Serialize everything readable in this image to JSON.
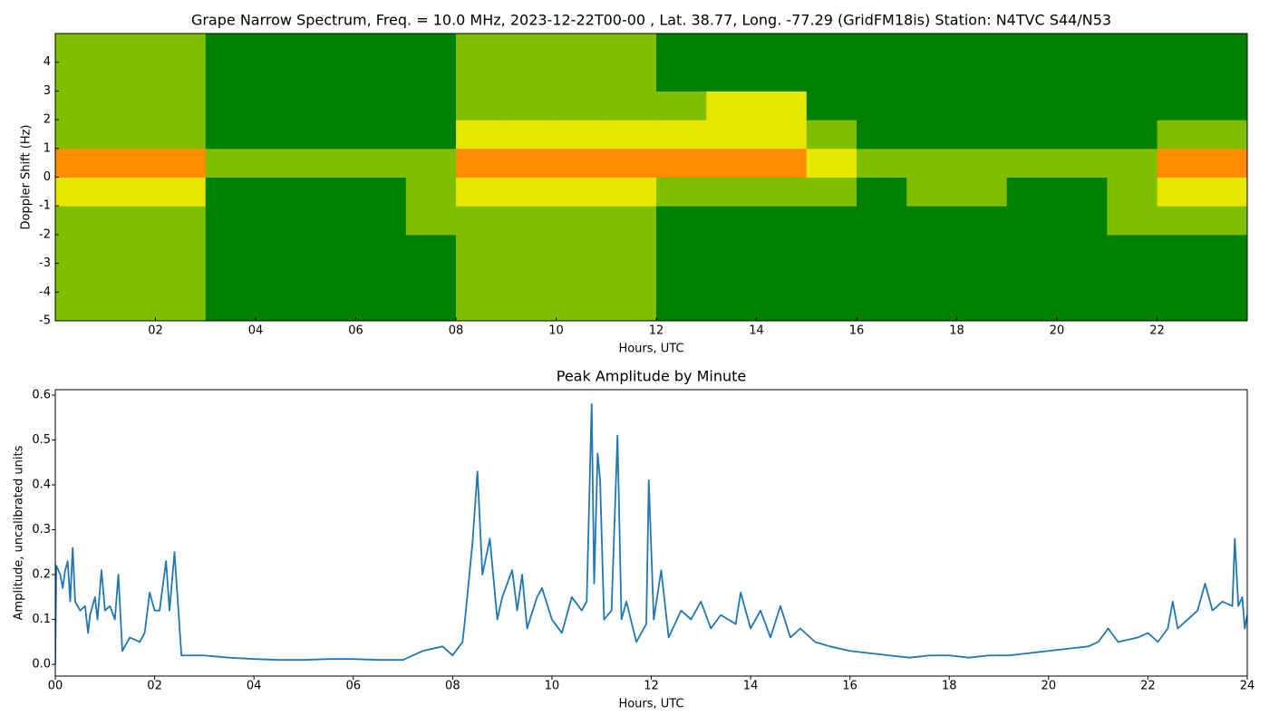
{
  "chart_data": [
    {
      "type": "heatmap",
      "title": "Grape Narrow Spectrum, Freq. = 10.0 MHz, 2023-12-22T00-00 , Lat.  38.77, Long. -77.29 (GridFM18is) Station: N4TVC S44/N53",
      "x_label": "Hours, UTC",
      "y_label": "Doppler Shift (Hz)",
      "x": [
        0,
        1,
        2,
        3,
        4,
        5,
        6,
        7,
        8,
        9,
        10,
        11,
        12,
        13,
        14,
        15,
        16,
        17,
        18,
        19,
        20,
        21,
        22,
        23
      ],
      "y": [
        -5,
        -4,
        -3,
        -2,
        -1,
        0,
        1,
        2,
        3,
        4
      ],
      "z": [
        [
          1,
          1,
          1,
          0,
          0,
          0,
          0,
          0,
          1,
          1,
          1,
          1,
          0,
          0,
          0,
          0,
          0,
          0,
          0,
          0,
          0,
          0,
          0,
          0
        ],
        [
          1,
          1,
          1,
          0,
          0,
          0,
          0,
          0,
          1,
          1,
          1,
          1,
          0,
          0,
          0,
          0,
          0,
          0,
          0,
          0,
          0,
          0,
          0,
          0
        ],
        [
          1,
          1,
          1,
          0,
          0,
          0,
          0,
          0,
          1,
          1,
          1,
          1,
          0,
          0,
          0,
          0,
          0,
          0,
          0,
          0,
          0,
          0,
          0,
          0
        ],
        [
          1,
          1,
          1,
          0,
          0,
          0,
          0,
          1,
          1,
          1,
          1,
          1,
          0,
          0,
          0,
          0,
          0,
          0,
          0,
          0,
          0,
          1,
          1,
          1
        ],
        [
          2,
          2,
          2,
          0,
          0,
          0,
          0,
          1,
          2,
          2,
          2,
          2,
          1,
          1,
          1,
          1,
          0,
          1,
          1,
          0,
          0,
          1,
          2,
          2
        ],
        [
          3,
          3,
          3,
          1,
          1,
          1,
          1,
          1,
          3,
          3,
          3,
          3,
          3,
          3,
          3,
          2,
          1,
          1,
          1,
          1,
          1,
          1,
          3,
          3
        ],
        [
          1,
          1,
          1,
          0,
          0,
          0,
          0,
          0,
          2,
          2,
          2,
          2,
          2,
          2,
          2,
          1,
          0,
          0,
          0,
          0,
          0,
          0,
          1,
          1
        ],
        [
          1,
          1,
          1,
          0,
          0,
          0,
          0,
          0,
          1,
          1,
          1,
          1,
          1,
          2,
          2,
          0,
          0,
          0,
          0,
          0,
          0,
          0,
          0,
          0
        ],
        [
          1,
          1,
          1,
          0,
          0,
          0,
          0,
          0,
          1,
          1,
          1,
          1,
          0,
          0,
          0,
          0,
          0,
          0,
          0,
          0,
          0,
          0,
          0,
          0
        ],
        [
          1,
          1,
          1,
          0,
          0,
          0,
          0,
          0,
          1,
          1,
          1,
          1,
          0,
          0,
          0,
          0,
          0,
          0,
          0,
          0,
          0,
          0,
          0,
          0
        ]
      ],
      "colors": [
        "#008000",
        "#7fbf00",
        "#e6e600",
        "#ff8c00"
      ],
      "xlim": [
        0,
        23.8
      ],
      "ylim": [
        -5,
        5
      ],
      "xticks": [
        {
          "value": 2,
          "label": "02"
        },
        {
          "value": 4,
          "label": "04"
        },
        {
          "value": 6,
          "label": "06"
        },
        {
          "value": 8,
          "label": "08"
        },
        10,
        12,
        14,
        16,
        18,
        20,
        22
      ],
      "yticks": [
        -5,
        -4,
        -3,
        -2,
        -1,
        0,
        1,
        2,
        3,
        4
      ]
    },
    {
      "type": "line",
      "title": "Peak Amplitude by Minute",
      "x_label": "Hours, UTC",
      "y_label": "Amplitude, uncalibrated units",
      "color": "#1f77b4",
      "x": [
        0.0,
        0.02,
        0.1,
        0.15,
        0.2,
        0.25,
        0.3,
        0.35,
        0.4,
        0.5,
        0.6,
        0.66,
        0.7,
        0.8,
        0.85,
        0.93,
        1.0,
        1.1,
        1.2,
        1.27,
        1.35,
        1.5,
        1.7,
        1.8,
        1.9,
        2.0,
        2.1,
        2.23,
        2.3,
        2.4,
        2.54,
        3.0,
        3.5,
        4.0,
        4.5,
        5.0,
        5.5,
        6.0,
        6.5,
        7.0,
        7.4,
        7.8,
        8.0,
        8.2,
        8.25,
        8.4,
        8.5,
        8.6,
        8.75,
        8.9,
        9.0,
        9.2,
        9.3,
        9.4,
        9.5,
        9.7,
        9.8,
        10.0,
        10.2,
        10.4,
        10.6,
        10.7,
        10.8,
        10.85,
        10.92,
        10.97,
        11.05,
        11.2,
        11.32,
        11.4,
        11.5,
        11.7,
        11.9,
        11.95,
        12.05,
        12.2,
        12.35,
        12.6,
        12.8,
        13.0,
        13.2,
        13.4,
        13.7,
        13.8,
        14.0,
        14.2,
        14.4,
        14.6,
        14.8,
        15.0,
        15.3,
        15.6,
        16.0,
        16.4,
        16.8,
        17.2,
        17.6,
        18.0,
        18.4,
        18.8,
        19.2,
        19.6,
        20.0,
        20.4,
        20.8,
        21.0,
        21.2,
        21.4,
        21.8,
        22.0,
        22.2,
        22.4,
        22.5,
        22.6,
        22.8,
        23.0,
        23.15,
        23.3,
        23.5,
        23.7,
        23.75,
        23.82,
        23.9,
        23.95,
        24.0
      ],
      "values": [
        0.0,
        0.22,
        0.2,
        0.17,
        0.21,
        0.23,
        0.14,
        0.26,
        0.14,
        0.12,
        0.13,
        0.07,
        0.11,
        0.15,
        0.1,
        0.21,
        0.12,
        0.13,
        0.1,
        0.2,
        0.03,
        0.06,
        0.05,
        0.07,
        0.16,
        0.12,
        0.12,
        0.23,
        0.12,
        0.25,
        0.02,
        0.02,
        0.015,
        0.012,
        0.01,
        0.01,
        0.012,
        0.012,
        0.01,
        0.01,
        0.03,
        0.04,
        0.02,
        0.05,
        0.1,
        0.27,
        0.43,
        0.2,
        0.28,
        0.1,
        0.15,
        0.21,
        0.12,
        0.2,
        0.08,
        0.15,
        0.17,
        0.1,
        0.07,
        0.15,
        0.12,
        0.14,
        0.58,
        0.18,
        0.47,
        0.41,
        0.1,
        0.12,
        0.51,
        0.1,
        0.14,
        0.05,
        0.09,
        0.41,
        0.1,
        0.21,
        0.06,
        0.12,
        0.1,
        0.14,
        0.08,
        0.11,
        0.09,
        0.16,
        0.08,
        0.12,
        0.06,
        0.13,
        0.06,
        0.08,
        0.05,
        0.04,
        0.03,
        0.025,
        0.02,
        0.015,
        0.02,
        0.02,
        0.015,
        0.02,
        0.02,
        0.025,
        0.03,
        0.035,
        0.04,
        0.05,
        0.08,
        0.05,
        0.06,
        0.07,
        0.05,
        0.08,
        0.14,
        0.08,
        0.1,
        0.12,
        0.18,
        0.12,
        0.14,
        0.13,
        0.28,
        0.13,
        0.15,
        0.08,
        0.11
      ],
      "xlim": [
        0,
        24
      ],
      "ylim": [
        -0.026,
        0.612
      ],
      "xticks": [
        {
          "value": 0,
          "label": "00"
        },
        {
          "value": 2,
          "label": "02"
        },
        {
          "value": 4,
          "label": "04"
        },
        {
          "value": 6,
          "label": "06"
        },
        {
          "value": 8,
          "label": "08"
        },
        10,
        12,
        14,
        16,
        18,
        20,
        22,
        24
      ],
      "yticks": [
        {
          "value": 0,
          "label": "0.0"
        },
        0.1,
        0.2,
        0.3,
        0.4,
        0.5,
        0.6
      ]
    }
  ]
}
